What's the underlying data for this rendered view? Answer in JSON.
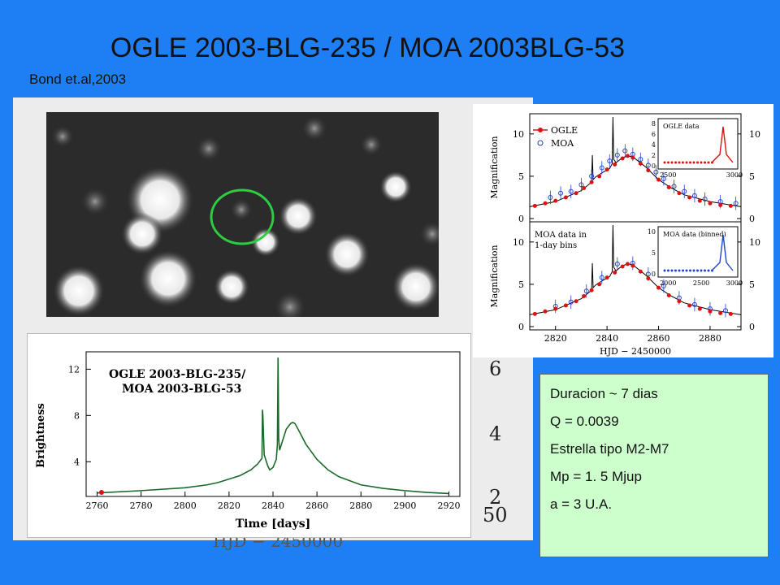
{
  "slide": {
    "title": "OGLE 2003-BLG-235 / MOA 2003BLG-53",
    "citation": "Bond et.al,2003"
  },
  "info": {
    "lines": [
      "Duracion ~ 7 dias",
      "Q = 0.0039",
      "Estrella tipo M2-M7",
      "Mp = 1. 5 Mjup",
      "a = 3 U.A."
    ]
  },
  "ghost_axis": {
    "labels": [
      "6",
      "4",
      "2",
      "50",
      "HJD − 2450000"
    ]
  },
  "colors": {
    "background": "#1e7ff5",
    "info_box": "#ccffcc",
    "highlight_circle": "#2ecc40",
    "ogle": "#dd1111",
    "moa": "#2244cc",
    "model": "#1a6b2a"
  },
  "chart_data": [
    {
      "type": "line",
      "title": "OGLE 2003-BLG-235/ MOA 2003-BLG-53",
      "xlabel": "Time [days]",
      "ylabel": "Brightness",
      "xlim": [
        2755,
        2925
      ],
      "ylim": [
        1,
        13.5
      ],
      "xticks": [
        2760,
        2780,
        2800,
        2820,
        2840,
        2860,
        2880,
        2900,
        2920
      ],
      "yticks": [
        4,
        8,
        12
      ],
      "series": [
        {
          "x": [
            2760,
            2780,
            2800,
            2810,
            2815,
            2820,
            2825,
            2830,
            2833,
            2835,
            2835.2,
            2835.4,
            2836,
            2837.5,
            2838.5,
            2840,
            2841.5,
            2842,
            2842.3,
            2842.6,
            2843,
            2844,
            2846,
            2848,
            2849,
            2850,
            2852,
            2855,
            2860,
            2865,
            2870,
            2880,
            2890,
            2900,
            2910,
            2920
          ],
          "y": [
            1.3,
            1.5,
            1.75,
            2.0,
            2.2,
            2.5,
            2.8,
            3.3,
            3.8,
            4.3,
            8.5,
            8.0,
            4.6,
            3.7,
            3.3,
            3.5,
            4.2,
            5.5,
            13.0,
            6.0,
            5.0,
            5.6,
            6.8,
            7.3,
            7.4,
            7.3,
            6.6,
            5.5,
            4.2,
            3.3,
            2.7,
            2.0,
            1.7,
            1.5,
            1.35,
            1.25
          ]
        }
      ],
      "points": [
        {
          "x": 2762,
          "y": 1.35
        }
      ]
    },
    {
      "type": "scatter",
      "ylabel": "Magnification",
      "xlim": [
        2810,
        2892
      ],
      "ylim": [
        0,
        12
      ],
      "yticks": [
        0,
        5,
        10
      ],
      "legend": [
        "OGLE",
        "MOA"
      ],
      "legend_position": "top-left",
      "ogle": {
        "x": [
          2812,
          2816,
          2820,
          2824,
          2828,
          2831,
          2834,
          2837,
          2840,
          2843,
          2846,
          2848,
          2850,
          2853,
          2856,
          2860,
          2864,
          2868,
          2872,
          2876,
          2880,
          2884,
          2888
        ],
        "y": [
          1.5,
          1.8,
          2.1,
          2.5,
          3.0,
          3.6,
          4.3,
          5.0,
          5.8,
          6.4,
          7.1,
          7.4,
          7.2,
          6.5,
          5.7,
          4.6,
          3.7,
          3.0,
          2.5,
          2.1,
          1.8,
          1.6,
          1.5
        ]
      },
      "moa": {
        "x": [
          2818,
          2822,
          2826,
          2830,
          2834,
          2838,
          2841,
          2844,
          2847,
          2850,
          2853,
          2856,
          2859,
          2862,
          2866,
          2870,
          2874,
          2878,
          2884,
          2890
        ],
        "y": [
          2.5,
          3.0,
          3.2,
          4.0,
          5.0,
          6.0,
          6.8,
          7.5,
          8.0,
          7.6,
          7.0,
          6.3,
          5.5,
          4.7,
          3.8,
          3.2,
          2.7,
          2.3,
          2.0,
          1.8
        ]
      },
      "model_x": [
        2810,
        2820,
        2830,
        2834,
        2834.3,
        2834.6,
        2835.5,
        2838,
        2841,
        2842,
        2842.3,
        2842.6,
        2843.5,
        2846,
        2848,
        2850,
        2855,
        2860,
        2865,
        2870,
        2880,
        2892
      ],
      "model_y": [
        1.4,
        2.0,
        3.3,
        4.3,
        7.5,
        4.6,
        4.9,
        5.4,
        5.9,
        6.5,
        12.0,
        7.0,
        6.6,
        7.2,
        7.4,
        7.3,
        6.1,
        4.6,
        3.6,
        2.8,
        2.0,
        1.4
      ],
      "inset": {
        "title": "OGLE data",
        "xticks": [
          2500,
          3000
        ],
        "yticks": [
          0,
          2,
          4,
          6,
          8
        ]
      }
    },
    {
      "type": "scatter",
      "xlabel": "HJD − 2450000",
      "ylabel": "Magnification",
      "xlim": [
        2810,
        2892
      ],
      "ylim": [
        0,
        12
      ],
      "xticks": [
        2820,
        2840,
        2860,
        2880
      ],
      "yticks": [
        0,
        5,
        10
      ],
      "annotation": "MOA data in 1-day bins",
      "ogle": {
        "x": [
          2812,
          2816,
          2820,
          2824,
          2828,
          2831,
          2834,
          2837,
          2840,
          2843,
          2846,
          2848,
          2850,
          2853,
          2856,
          2860,
          2864,
          2868,
          2872,
          2876,
          2880,
          2884,
          2888
        ],
        "y": [
          1.5,
          1.8,
          2.1,
          2.5,
          3.0,
          3.6,
          4.3,
          5.0,
          5.8,
          6.4,
          7.1,
          7.4,
          7.2,
          6.5,
          5.7,
          4.6,
          3.7,
          3.0,
          2.5,
          2.1,
          1.8,
          1.6,
          1.5
        ]
      },
      "moa": {
        "x": [
          2820,
          2826,
          2832,
          2838,
          2844,
          2850,
          2856,
          2862,
          2868,
          2874,
          2880,
          2886
        ],
        "y": [
          2.4,
          2.9,
          4.2,
          5.8,
          7.4,
          7.5,
          6.2,
          4.8,
          3.4,
          2.6,
          2.1,
          1.9
        ]
      },
      "model_x": [
        2810,
        2820,
        2830,
        2834,
        2834.3,
        2834.6,
        2835.5,
        2838,
        2841,
        2842,
        2842.3,
        2842.6,
        2843.5,
        2846,
        2848,
        2850,
        2855,
        2860,
        2865,
        2870,
        2880,
        2892
      ],
      "model_y": [
        1.4,
        2.0,
        3.3,
        4.3,
        7.5,
        4.6,
        4.9,
        5.4,
        5.9,
        6.5,
        12.0,
        7.0,
        6.6,
        7.2,
        7.4,
        7.3,
        6.1,
        4.6,
        3.6,
        2.8,
        2.0,
        1.4
      ],
      "inset": {
        "title": "MOA data (binned)",
        "xticks": [
          2000,
          2500,
          3000
        ],
        "yticks": [
          0,
          5,
          10
        ]
      }
    }
  ]
}
